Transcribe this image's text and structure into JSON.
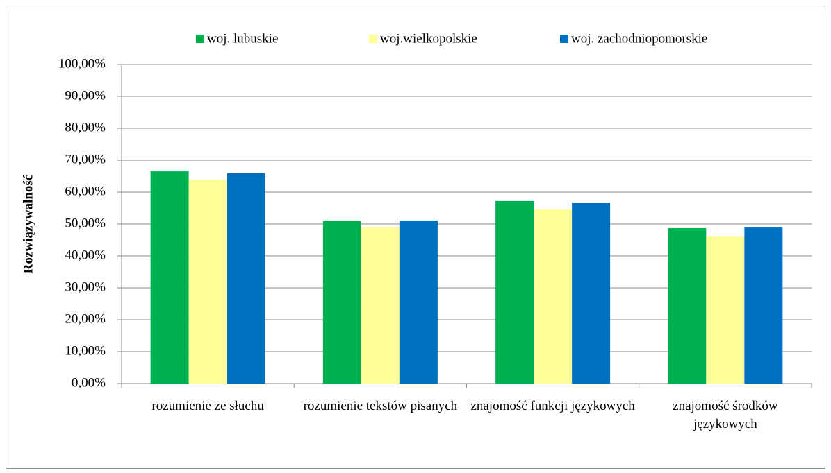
{
  "chart_data": {
    "type": "bar",
    "y_label": "Rozwiązywalność",
    "categories": [
      "rozumienie ze słuchu",
      "rozumienie tekstów pisanych",
      "znajomość funkcji językowych",
      "znajomość środków językowych"
    ],
    "series": [
      {
        "name": "woj. lubuskie",
        "color": "#00b050",
        "values": [
          66.5,
          51.1,
          57.2,
          48.7
        ]
      },
      {
        "name": "woj.wielkopolskie",
        "color": "#ffff99",
        "values": [
          63.9,
          48.9,
          54.6,
          46.1
        ]
      },
      {
        "name": "woj. zachodniopomorskie",
        "color": "#0070c0",
        "values": [
          65.9,
          51.1,
          56.7,
          48.9
        ]
      }
    ],
    "ylim": [
      0,
      100
    ],
    "yticks": [
      {
        "value": 0,
        "label": "0,00%"
      },
      {
        "value": 10,
        "label": "10,00%"
      },
      {
        "value": 20,
        "label": "20,00%"
      },
      {
        "value": 30,
        "label": "30,00%"
      },
      {
        "value": 40,
        "label": "40,00%"
      },
      {
        "value": 50,
        "label": "50,00%"
      },
      {
        "value": 60,
        "label": "60,00%"
      },
      {
        "value": 70,
        "label": "70,00%"
      },
      {
        "value": 80,
        "label": "80,00%"
      },
      {
        "value": 90,
        "label": "90,00%"
      },
      {
        "value": 100,
        "label": "100,00%"
      }
    ],
    "grid": true,
    "legend": "top"
  }
}
